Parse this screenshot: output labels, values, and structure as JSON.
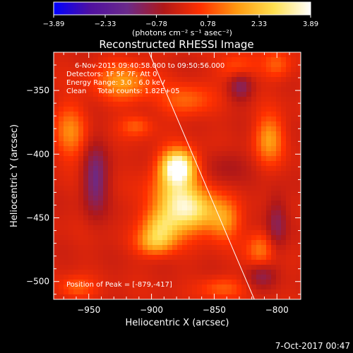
{
  "colorbar": {
    "tick_labels": [
      "−3.89",
      "−2.33",
      "−0.78",
      "0.78",
      "2.33",
      "3.89"
    ],
    "tick_values": [
      -3.89,
      -2.33,
      -0.78,
      0.78,
      2.33,
      3.89
    ],
    "range": [
      -3.89,
      3.89
    ],
    "unit_label": "(photons cm⁻² s⁻¹ asec⁻²)",
    "colors": [
      "#0000ff",
      "#5010a0",
      "#6a2a8a",
      "#b01818",
      "#ff3000",
      "#ff9a10",
      "#ffe050",
      "#ffffff"
    ]
  },
  "info": {
    "time_range": "6-Nov-2015 09:40:58.000 to 09:50:56.000",
    "detectors": "Detectors: 1F 5F 7F, Att 0",
    "energy": "Energy Range: 3.0 - 6.0 keV",
    "clean": "Clean     Total counts: 1.82E+05",
    "peak": "Position of Peak = [-879,-417]"
  },
  "footer": {
    "date": "7-Oct-2017 00:47"
  },
  "chart_data": {
    "type": "heatmap",
    "title": "Reconstructed RHESSI Image",
    "xlabel": "Heliocentric X (arcsec)",
    "ylabel": "Heliocentric Y (arcsec)",
    "xlim": [
      -978,
      -781
    ],
    "ylim": [
      -514,
      -320
    ],
    "xticks": [
      -950,
      -900,
      -850,
      -800
    ],
    "yticks": [
      -350,
      -400,
      -450,
      -500
    ],
    "xtick_labels": [
      "−950",
      "−900",
      "−850",
      "−800"
    ],
    "ytick_labels": [
      "−350",
      "−400",
      "−450",
      "−500"
    ],
    "value_range": [
      -3.89,
      3.89
    ],
    "peak_position": [
      -879,
      -417
    ],
    "limb_line": [
      [
        -902,
        -320
      ],
      [
        -818,
        -514
      ]
    ],
    "blobs": [
      {
        "x": -879,
        "y": -410,
        "amp": 3.9,
        "sx": 9,
        "sy": 9
      },
      {
        "x": -880,
        "y": -435,
        "amp": 2.5,
        "sx": 14,
        "sy": 17
      },
      {
        "x": -864,
        "y": -445,
        "amp": 2.0,
        "sx": 13,
        "sy": 11
      },
      {
        "x": -893,
        "y": -458,
        "amp": 2.0,
        "sx": 10,
        "sy": 10
      },
      {
        "x": -898,
        "y": -470,
        "amp": 1.4,
        "sx": 10,
        "sy": 7
      },
      {
        "x": -842,
        "y": -452,
        "amp": 1.5,
        "sx": 9,
        "sy": 11
      },
      {
        "x": -922,
        "y": -343,
        "amp": 1.6,
        "sx": 16,
        "sy": 11
      },
      {
        "x": -965,
        "y": -383,
        "amp": 1.4,
        "sx": 9,
        "sy": 15
      },
      {
        "x": -912,
        "y": -378,
        "amp": 1.0,
        "sx": 9,
        "sy": 6
      },
      {
        "x": -872,
        "y": -358,
        "amp": 1.1,
        "sx": 14,
        "sy": 9
      },
      {
        "x": -831,
        "y": -333,
        "amp": 1.2,
        "sx": 10,
        "sy": 8
      },
      {
        "x": -806,
        "y": -388,
        "amp": 1.7,
        "sx": 8,
        "sy": 13
      },
      {
        "x": -813,
        "y": -475,
        "amp": 1.3,
        "sx": 8,
        "sy": 10
      },
      {
        "x": -960,
        "y": -505,
        "amp": 1.0,
        "sx": 10,
        "sy": 6
      },
      {
        "x": -844,
        "y": -505,
        "amp": 1.0,
        "sx": 12,
        "sy": 6
      },
      {
        "x": -800,
        "y": -330,
        "amp": 1.0,
        "sx": 8,
        "sy": 8
      },
      {
        "x": -945,
        "y": -420,
        "amp": -1.6,
        "sx": 7,
        "sy": 19
      },
      {
        "x": -829,
        "y": -345,
        "amp": -1.4,
        "sx": 7,
        "sy": 9
      },
      {
        "x": -800,
        "y": -455,
        "amp": -1.2,
        "sx": 6,
        "sy": 16
      },
      {
        "x": -812,
        "y": -495,
        "amp": -1.0,
        "sx": 8,
        "sy": 7
      },
      {
        "x": -840,
        "y": -410,
        "amp": -0.6,
        "sx": 12,
        "sy": 10
      }
    ]
  }
}
